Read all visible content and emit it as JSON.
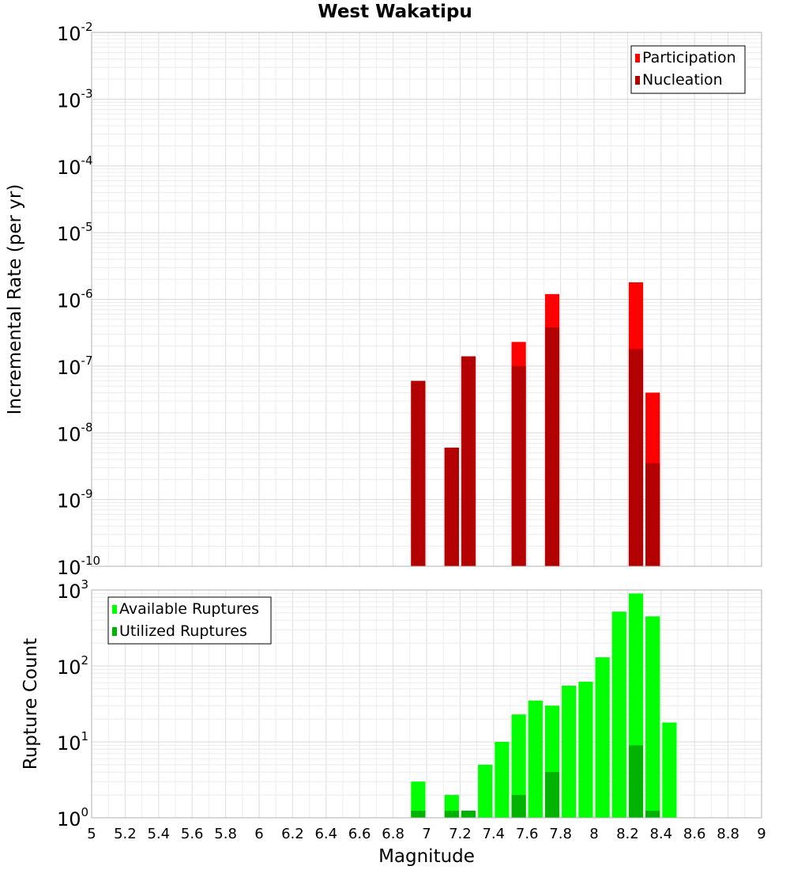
{
  "title": "West Wakatipu",
  "colors": {
    "participation": "#ff0000",
    "nucleation": "#b30000",
    "available": "#00ff00",
    "utilized": "#00b300"
  },
  "chart_data": [
    {
      "type": "bar",
      "name": "incremental-rate",
      "ylabel": "Incremental Rate (per yr)",
      "xlabel": "",
      "log_y": true,
      "xlim": [
        5,
        9
      ],
      "ylim_exp": [
        -10,
        -2
      ],
      "grid": true,
      "legend_position": "top-right",
      "legend": [
        "Participation",
        "Nucleation"
      ],
      "x": [
        6.95,
        7.15,
        7.25,
        7.55,
        7.75,
        8.25,
        8.35
      ],
      "series": [
        {
          "name": "Participation",
          "values": [
            6e-08,
            6e-09,
            1.4e-07,
            2.3e-07,
            1.2e-06,
            1.8e-06,
            4e-08
          ]
        },
        {
          "name": "Nucleation",
          "values": [
            6e-08,
            6e-09,
            1.4e-07,
            1e-07,
            3.8e-07,
            1.8e-07,
            3.5e-09
          ]
        }
      ]
    },
    {
      "type": "bar",
      "name": "rupture-count",
      "ylabel": "Rupture Count",
      "xlabel": "Magnitude",
      "log_y": true,
      "xlim": [
        5,
        9
      ],
      "ylim_exp": [
        0,
        3
      ],
      "grid": true,
      "legend_position": "top-left",
      "legend": [
        "Available Ruptures",
        "Utilized Ruptures"
      ],
      "x_ticks": [
        "5",
        "5.2",
        "5.4",
        "5.6",
        "5.8",
        "6",
        "6.2",
        "6.4",
        "6.6",
        "6.8",
        "7",
        "7.2",
        "7.4",
        "7.6",
        "7.8",
        "8",
        "8.2",
        "8.4",
        "8.6",
        "8.8",
        "9"
      ],
      "x": [
        6.95,
        7.15,
        7.25,
        7.35,
        7.45,
        7.55,
        7.65,
        7.75,
        7.85,
        7.95,
        8.05,
        8.15,
        8.25,
        8.35,
        8.45
      ],
      "series": [
        {
          "name": "Available Ruptures",
          "values": [
            3,
            2,
            1,
            5,
            10,
            23,
            35,
            30,
            55,
            62,
            130,
            520,
            900,
            450,
            18
          ]
        },
        {
          "name": "Utilized Ruptures",
          "values": [
            1,
            1,
            1,
            0,
            0,
            2,
            0,
            4,
            0,
            0,
            0,
            0,
            9,
            1,
            0
          ]
        }
      ]
    }
  ]
}
